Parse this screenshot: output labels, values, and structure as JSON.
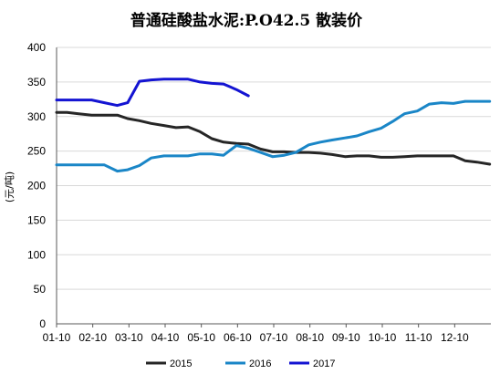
{
  "chart_data": {
    "type": "line",
    "title": "普通硅酸盐水泥:P.O42.5 散装价",
    "ylabel": "(元/吨)",
    "xlabel": "",
    "ylim": [
      0,
      400
    ],
    "yticks": [
      0,
      50,
      100,
      150,
      200,
      250,
      300,
      350,
      400
    ],
    "x_tick_labels": [
      "01-10",
      "02-10",
      "03-10",
      "04-10",
      "05-10",
      "06-10",
      "07-10",
      "08-10",
      "09-10",
      "10-10",
      "11-10",
      "12-10"
    ],
    "grid": "horizontal",
    "legend_position": "bottom",
    "series": [
      {
        "name": "2015",
        "color": "#262626",
        "x": [
          "01-01",
          "01-10",
          "01-20",
          "01-31",
          "02-10",
          "02-20",
          "02-28",
          "03-10",
          "03-20",
          "03-31",
          "04-10",
          "04-20",
          "04-30",
          "05-10",
          "05-20",
          "05-31",
          "06-10",
          "06-20",
          "06-30",
          "07-10",
          "07-20",
          "07-31",
          "08-10",
          "08-20",
          "08-31",
          "09-10",
          "09-20",
          "09-30",
          "10-10",
          "10-20",
          "10-31",
          "11-10",
          "11-20",
          "11-30",
          "12-10",
          "12-20",
          "12-31"
        ],
        "values": [
          306,
          306,
          304,
          302,
          302,
          302,
          297,
          294,
          290,
          287,
          284,
          285,
          278,
          268,
          263,
          261,
          260,
          253,
          249,
          249,
          248,
          248,
          247,
          245,
          242,
          243,
          243,
          241,
          241,
          242,
          243,
          243,
          243,
          243,
          236,
          234,
          231
        ]
      },
      {
        "name": "2016",
        "color": "#1a86c7",
        "x": [
          "01-01",
          "01-10",
          "01-20",
          "01-31",
          "02-10",
          "02-20",
          "02-28",
          "03-10",
          "03-20",
          "03-31",
          "04-10",
          "04-20",
          "04-30",
          "05-10",
          "05-20",
          "05-31",
          "06-10",
          "06-20",
          "06-30",
          "07-10",
          "07-20",
          "07-31",
          "08-10",
          "08-20",
          "08-31",
          "09-10",
          "09-20",
          "09-30",
          "10-10",
          "10-20",
          "10-31",
          "11-10",
          "11-20",
          "11-30",
          "12-10",
          "12-20",
          "12-31"
        ],
        "values": [
          230,
          230,
          230,
          230,
          230,
          221,
          223,
          229,
          240,
          243,
          243,
          243,
          246,
          246,
          244,
          258,
          254,
          248,
          242,
          244,
          248,
          259,
          263,
          266,
          269,
          272,
          278,
          283,
          293,
          304,
          308,
          318,
          320,
          319,
          322,
          322,
          322
        ]
      },
      {
        "name": "2017",
        "color": "#1414d2",
        "x": [
          "01-01",
          "01-10",
          "01-20",
          "01-31",
          "02-10",
          "02-20",
          "02-28",
          "03-10",
          "03-20",
          "03-31",
          "04-10",
          "04-20",
          "04-30",
          "05-10",
          "05-20",
          "05-31",
          "06-10"
        ],
        "values": [
          324,
          324,
          324,
          324,
          320,
          316,
          320,
          351,
          353,
          354,
          354,
          354,
          350,
          348,
          347,
          339,
          330
        ]
      }
    ]
  }
}
